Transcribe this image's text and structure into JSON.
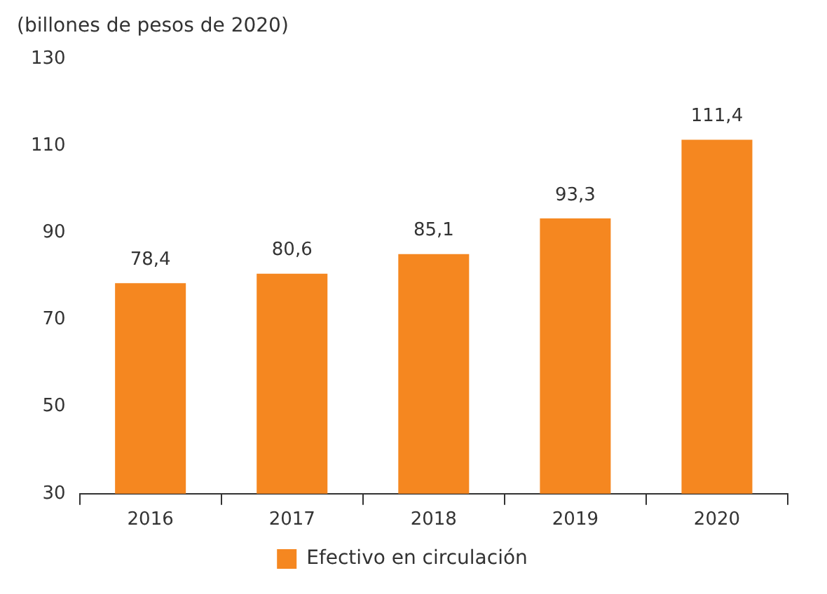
{
  "chart_data": {
    "type": "bar",
    "ylabel": "(billones de pesos de 2020)",
    "categories": [
      "2016",
      "2017",
      "2018",
      "2019",
      "2020"
    ],
    "series": [
      {
        "name": "Efectivo en circulación",
        "color": "#f58720",
        "values": [
          78.4,
          80.6,
          85.1,
          93.3,
          111.4
        ],
        "value_labels": [
          "78,4",
          "80,6",
          "85,1",
          "93,3",
          "111,4"
        ]
      }
    ],
    "ylim": [
      30,
      130
    ],
    "yticks": [
      30,
      50,
      70,
      90,
      110,
      130
    ],
    "grid": false,
    "legend": "bottom"
  }
}
